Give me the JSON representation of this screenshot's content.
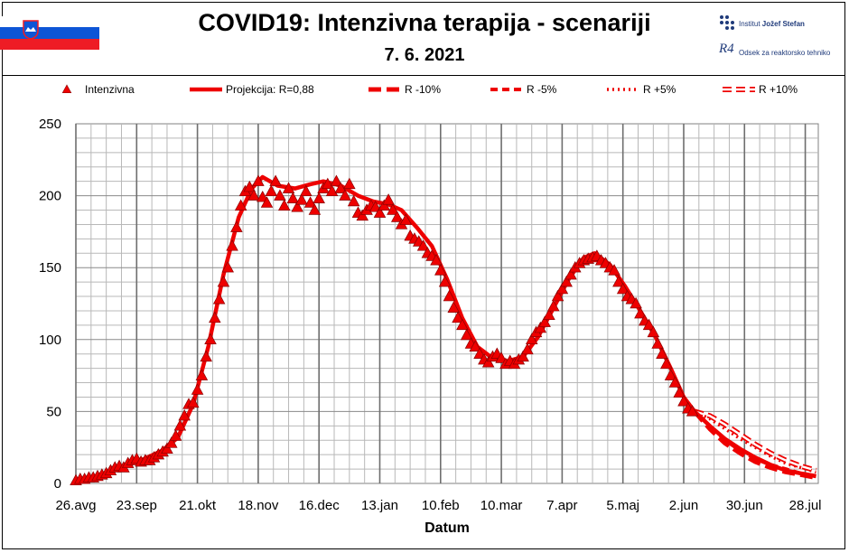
{
  "header": {
    "title": "COVID19: Intenzivna terapija - scenariji",
    "subtitle": "7. 6. 2021",
    "institute_name_prefix": "Institut ",
    "institute_name_bold": "Jožef Stefan",
    "department_mark": "R4",
    "department_name": "Odsek za reaktorsko tehniko",
    "flag_colors": [
      "#ffffff",
      "#0d55d6",
      "#ee1c25"
    ]
  },
  "chart_data": {
    "type": "line",
    "title": "COVID19: Intenzivna terapija - scenariji",
    "subtitle": "7. 6. 2021",
    "xlabel": "Datum",
    "ylabel": "",
    "ylim": [
      0,
      250
    ],
    "yticks": [
      0,
      50,
      100,
      150,
      200,
      250
    ],
    "xlim": [
      "2020-08-26",
      "2021-08-03"
    ],
    "xticks": [
      "2020-08-26",
      "2020-09-23",
      "2020-10-21",
      "2020-11-18",
      "2020-12-16",
      "2021-01-13",
      "2021-02-10",
      "2021-03-10",
      "2021-04-07",
      "2021-05-05",
      "2021-06-02",
      "2021-06-30",
      "2021-07-28"
    ],
    "xtick_labels": [
      "26.avg",
      "23.sep",
      "21.okt",
      "18.nov",
      "16.dec",
      "13.jan",
      "10.feb",
      "10.mar",
      "7.apr",
      "5.maj",
      "2.jun",
      "30.jun",
      "28.jul"
    ],
    "grid": true,
    "legend_position": "top",
    "color": "#ee0000",
    "series": [
      {
        "name": "Intenzivna",
        "style": "triangle-markers",
        "points": [
          [
            "2020-08-26",
            2
          ],
          [
            "2020-08-28",
            3
          ],
          [
            "2020-08-30",
            3
          ],
          [
            "2020-09-01",
            4
          ],
          [
            "2020-09-03",
            4
          ],
          [
            "2020-09-05",
            5
          ],
          [
            "2020-09-07",
            6
          ],
          [
            "2020-09-09",
            7
          ],
          [
            "2020-09-11",
            9
          ],
          [
            "2020-09-13",
            11
          ],
          [
            "2020-09-15",
            12
          ],
          [
            "2020-09-17",
            11
          ],
          [
            "2020-09-19",
            14
          ],
          [
            "2020-09-21",
            16
          ],
          [
            "2020-09-23",
            17
          ],
          [
            "2020-09-25",
            15
          ],
          [
            "2020-09-27",
            16
          ],
          [
            "2020-09-29",
            16
          ],
          [
            "2020-10-01",
            18
          ],
          [
            "2020-10-03",
            20
          ],
          [
            "2020-10-05",
            22
          ],
          [
            "2020-10-07",
            24
          ],
          [
            "2020-10-09",
            28
          ],
          [
            "2020-10-11",
            33
          ],
          [
            "2020-10-13",
            40
          ],
          [
            "2020-10-15",
            47
          ],
          [
            "2020-10-17",
            55
          ],
          [
            "2020-10-19",
            56
          ],
          [
            "2020-10-21",
            65
          ],
          [
            "2020-10-23",
            75
          ],
          [
            "2020-10-25",
            88
          ],
          [
            "2020-10-27",
            100
          ],
          [
            "2020-10-29",
            115
          ],
          [
            "2020-10-31",
            128
          ],
          [
            "2020-11-02",
            140
          ],
          [
            "2020-11-04",
            150
          ],
          [
            "2020-11-06",
            165
          ],
          [
            "2020-11-08",
            178
          ],
          [
            "2020-11-10",
            193
          ],
          [
            "2020-11-12",
            203
          ],
          [
            "2020-11-14",
            206
          ],
          [
            "2020-11-16",
            200
          ],
          [
            "2020-11-18",
            210
          ],
          [
            "2020-11-20",
            199
          ],
          [
            "2020-11-22",
            195
          ],
          [
            "2020-11-24",
            203
          ],
          [
            "2020-11-26",
            210
          ],
          [
            "2020-11-28",
            200
          ],
          [
            "2020-11-30",
            193
          ],
          [
            "2020-12-02",
            205
          ],
          [
            "2020-12-04",
            198
          ],
          [
            "2020-12-06",
            192
          ],
          [
            "2020-12-08",
            197
          ],
          [
            "2020-12-10",
            203
          ],
          [
            "2020-12-12",
            195
          ],
          [
            "2020-12-14",
            190
          ],
          [
            "2020-12-16",
            198
          ],
          [
            "2020-12-18",
            205
          ],
          [
            "2020-12-20",
            208
          ],
          [
            "2020-12-22",
            203
          ],
          [
            "2020-12-24",
            210
          ],
          [
            "2020-12-26",
            205
          ],
          [
            "2020-12-28",
            200
          ],
          [
            "2020-12-30",
            208
          ],
          [
            "2021-01-01",
            196
          ],
          [
            "2021-01-03",
            188
          ],
          [
            "2021-01-05",
            186
          ],
          [
            "2021-01-07",
            190
          ],
          [
            "2021-01-09",
            193
          ],
          [
            "2021-01-11",
            192
          ],
          [
            "2021-01-13",
            188
          ],
          [
            "2021-01-15",
            193
          ],
          [
            "2021-01-17",
            197
          ],
          [
            "2021-01-19",
            190
          ],
          [
            "2021-01-21",
            185
          ],
          [
            "2021-01-23",
            180
          ],
          [
            "2021-01-25",
            183
          ],
          [
            "2021-01-27",
            172
          ],
          [
            "2021-01-29",
            170
          ],
          [
            "2021-01-31",
            168
          ],
          [
            "2021-02-02",
            165
          ],
          [
            "2021-02-04",
            160
          ],
          [
            "2021-02-06",
            158
          ],
          [
            "2021-02-08",
            155
          ],
          [
            "2021-02-10",
            148
          ],
          [
            "2021-02-12",
            140
          ],
          [
            "2021-02-14",
            130
          ],
          [
            "2021-02-16",
            122
          ],
          [
            "2021-02-18",
            115
          ],
          [
            "2021-02-20",
            110
          ],
          [
            "2021-02-22",
            103
          ],
          [
            "2021-02-24",
            97
          ],
          [
            "2021-02-26",
            95
          ],
          [
            "2021-02-28",
            90
          ],
          [
            "2021-03-02",
            86
          ],
          [
            "2021-03-04",
            84
          ],
          [
            "2021-03-06",
            88
          ],
          [
            "2021-03-08",
            90
          ],
          [
            "2021-03-10",
            87
          ],
          [
            "2021-03-12",
            83
          ],
          [
            "2021-03-14",
            85
          ],
          [
            "2021-03-16",
            83
          ],
          [
            "2021-03-18",
            86
          ],
          [
            "2021-03-20",
            88
          ],
          [
            "2021-03-22",
            93
          ],
          [
            "2021-03-24",
            100
          ],
          [
            "2021-03-26",
            105
          ],
          [
            "2021-03-28",
            108
          ],
          [
            "2021-03-30",
            112
          ],
          [
            "2021-04-01",
            117
          ],
          [
            "2021-04-03",
            123
          ],
          [
            "2021-04-05",
            130
          ],
          [
            "2021-04-07",
            135
          ],
          [
            "2021-04-09",
            140
          ],
          [
            "2021-04-11",
            145
          ],
          [
            "2021-04-13",
            150
          ],
          [
            "2021-04-15",
            153
          ],
          [
            "2021-04-17",
            155
          ],
          [
            "2021-04-19",
            156
          ],
          [
            "2021-04-21",
            157
          ],
          [
            "2021-04-23",
            158
          ],
          [
            "2021-04-25",
            155
          ],
          [
            "2021-04-27",
            153
          ],
          [
            "2021-04-29",
            150
          ],
          [
            "2021-05-01",
            148
          ],
          [
            "2021-05-03",
            140
          ],
          [
            "2021-05-05",
            135
          ],
          [
            "2021-05-07",
            130
          ],
          [
            "2021-05-09",
            128
          ],
          [
            "2021-05-11",
            125
          ],
          [
            "2021-05-13",
            118
          ],
          [
            "2021-05-15",
            113
          ],
          [
            "2021-05-17",
            110
          ],
          [
            "2021-05-19",
            105
          ],
          [
            "2021-05-21",
            97
          ],
          [
            "2021-05-23",
            90
          ],
          [
            "2021-05-25",
            83
          ],
          [
            "2021-05-27",
            75
          ],
          [
            "2021-05-29",
            70
          ],
          [
            "2021-05-31",
            63
          ],
          [
            "2021-06-02",
            57
          ],
          [
            "2021-06-04",
            52
          ],
          [
            "2021-06-06",
            50
          ]
        ]
      },
      {
        "name": "Projekcija: R=0,88",
        "style": "solid",
        "points": [
          [
            "2020-08-26",
            2
          ],
          [
            "2020-09-05",
            5
          ],
          [
            "2020-09-15",
            11
          ],
          [
            "2020-09-25",
            16
          ],
          [
            "2020-10-05",
            23
          ],
          [
            "2020-10-12",
            32
          ],
          [
            "2020-10-19",
            55
          ],
          [
            "2020-10-26",
            95
          ],
          [
            "2020-11-02",
            145
          ],
          [
            "2020-11-09",
            185
          ],
          [
            "2020-11-15",
            205
          ],
          [
            "2020-11-20",
            213
          ],
          [
            "2020-11-27",
            207
          ],
          [
            "2020-12-05",
            205
          ],
          [
            "2020-12-12",
            208
          ],
          [
            "2020-12-18",
            210
          ],
          [
            "2020-12-26",
            207
          ],
          [
            "2021-01-03",
            200
          ],
          [
            "2021-01-10",
            196
          ],
          [
            "2021-01-17",
            194
          ],
          [
            "2021-01-23",
            190
          ],
          [
            "2021-01-30",
            178
          ],
          [
            "2021-02-06",
            165
          ],
          [
            "2021-02-13",
            142
          ],
          [
            "2021-02-20",
            115
          ],
          [
            "2021-02-27",
            95
          ],
          [
            "2021-03-06",
            87
          ],
          [
            "2021-03-13",
            85
          ],
          [
            "2021-03-20",
            88
          ],
          [
            "2021-03-27",
            102
          ],
          [
            "2021-04-03",
            122
          ],
          [
            "2021-04-10",
            142
          ],
          [
            "2021-04-17",
            157
          ],
          [
            "2021-04-22",
            160
          ],
          [
            "2021-04-29",
            152
          ],
          [
            "2021-05-06",
            137
          ],
          [
            "2021-05-13",
            120
          ],
          [
            "2021-05-20",
            102
          ],
          [
            "2021-05-27",
            80
          ],
          [
            "2021-06-02",
            60
          ],
          [
            "2021-06-07",
            50
          ],
          [
            "2021-06-14",
            40
          ],
          [
            "2021-06-21",
            31
          ],
          [
            "2021-06-28",
            24
          ],
          [
            "2021-07-05",
            18
          ],
          [
            "2021-07-12",
            13
          ],
          [
            "2021-07-19",
            9
          ],
          [
            "2021-07-26",
            7
          ],
          [
            "2021-08-02",
            5
          ]
        ]
      },
      {
        "name": "R -10%",
        "style": "long-dash",
        "points": [
          [
            "2021-06-07",
            50
          ],
          [
            "2021-06-14",
            38
          ],
          [
            "2021-06-21",
            28
          ],
          [
            "2021-06-28",
            21
          ],
          [
            "2021-07-05",
            15
          ],
          [
            "2021-07-12",
            11
          ],
          [
            "2021-07-19",
            8
          ],
          [
            "2021-07-26",
            6
          ],
          [
            "2021-08-02",
            4
          ]
        ]
      },
      {
        "name": "R -5%",
        "style": "dash",
        "points": [
          [
            "2021-06-07",
            50
          ],
          [
            "2021-06-14",
            40
          ],
          [
            "2021-06-21",
            30
          ],
          [
            "2021-06-28",
            23
          ],
          [
            "2021-07-05",
            17
          ],
          [
            "2021-07-12",
            13
          ],
          [
            "2021-07-19",
            10
          ],
          [
            "2021-07-26",
            7
          ],
          [
            "2021-08-02",
            5
          ]
        ]
      },
      {
        "name": "R +5%",
        "style": "dot",
        "points": [
          [
            "2021-06-07",
            50
          ],
          [
            "2021-06-14",
            45
          ],
          [
            "2021-06-21",
            38
          ],
          [
            "2021-06-28",
            31
          ],
          [
            "2021-07-05",
            25
          ],
          [
            "2021-07-12",
            19
          ],
          [
            "2021-07-19",
            14
          ],
          [
            "2021-07-26",
            11
          ],
          [
            "2021-08-02",
            8
          ]
        ]
      },
      {
        "name": "R +10%",
        "style": "double-dash",
        "points": [
          [
            "2021-06-07",
            50
          ],
          [
            "2021-06-14",
            47
          ],
          [
            "2021-06-21",
            41
          ],
          [
            "2021-06-28",
            34
          ],
          [
            "2021-07-05",
            27
          ],
          [
            "2021-07-12",
            21
          ],
          [
            "2021-07-19",
            16
          ],
          [
            "2021-07-26",
            12
          ],
          [
            "2021-08-02",
            9
          ]
        ]
      }
    ]
  }
}
